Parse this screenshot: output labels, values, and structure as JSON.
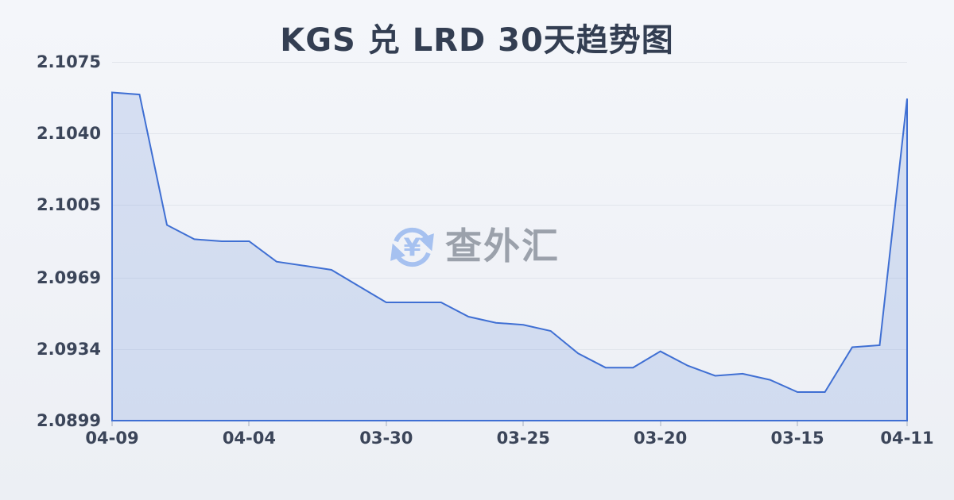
{
  "header": {
    "title": "KGS 兑 LRD 30天趋势图"
  },
  "watermark": {
    "icon": "currency-exchange-yen-icon",
    "text": "查外汇",
    "icon_color": "#a6c1f0",
    "text_color": "#9ba1ab"
  },
  "chart_data": {
    "type": "area",
    "title": "KGS 兑 LRD 30天趋势图",
    "x_tick_labels": [
      "04-09",
      "04-04",
      "03-30",
      "03-25",
      "03-20",
      "03-15",
      "04-11"
    ],
    "x_tick_indices": [
      0,
      5,
      10,
      15,
      20,
      25,
      29
    ],
    "y_tick_labels": [
      "2.1075",
      "2.1040",
      "2.1005",
      "2.0969",
      "2.0934",
      "2.0899"
    ],
    "ylim": [
      2.0899,
      2.1075
    ],
    "values": [
      2.106,
      2.1059,
      2.0995,
      2.0988,
      2.0987,
      2.0987,
      2.0977,
      2.0975,
      2.0973,
      2.0965,
      2.0957,
      2.0957,
      2.0957,
      2.095,
      2.0947,
      2.0946,
      2.0943,
      2.0932,
      2.0925,
      2.0925,
      2.0933,
      2.0926,
      2.0921,
      2.0922,
      2.0919,
      2.0913,
      2.0913,
      2.0935,
      2.0936,
      2.1057
    ],
    "grid": true,
    "legend": false,
    "colors": {
      "line": "#3f6fd3",
      "fill": "rgba(111,146,220,0.22)",
      "grid": "#e1e5ec",
      "axis_line": "#3f6fd3",
      "tick": "#c9cfda",
      "label": "#3b4559",
      "title": "#333e52"
    }
  }
}
